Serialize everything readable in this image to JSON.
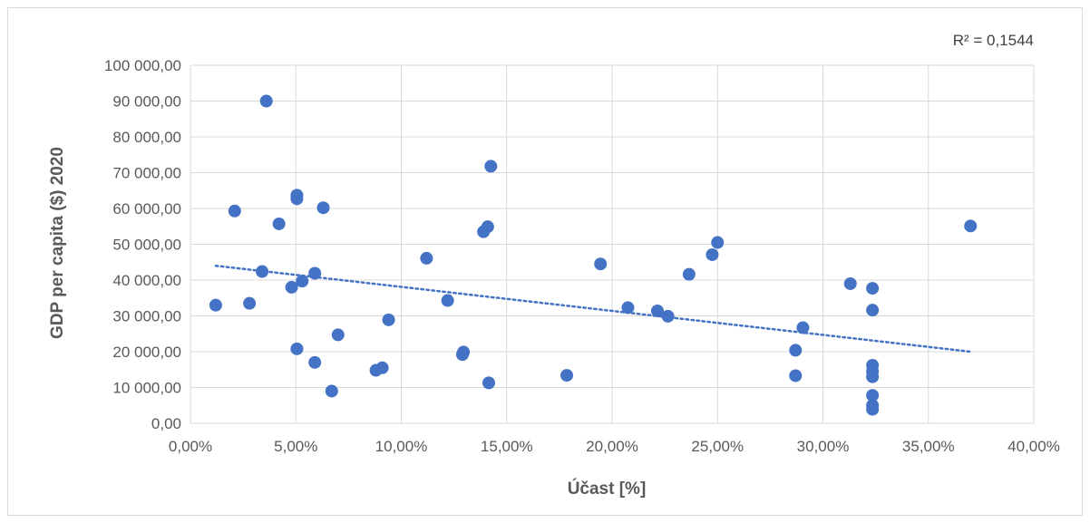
{
  "chart_data": {
    "type": "scatter",
    "xlabel": "Účast [%]",
    "ylabel": "GDP per capita ($) 2020",
    "xlim": [
      0,
      40
    ],
    "ylim": [
      0,
      100000
    ],
    "x_ticks": [
      "0,00%",
      "5,00%",
      "10,00%",
      "15,00%",
      "20,00%",
      "25,00%",
      "30,00%",
      "35,00%",
      "40,00%"
    ],
    "y_ticks": [
      "0,00",
      "10 000,00",
      "20 000,00",
      "30 000,00",
      "40 000,00",
      "50 000,00",
      "60 000,00",
      "70 000,00",
      "80 000,00",
      "90 000,00",
      "100 000,00"
    ],
    "grid": true,
    "legend": "none",
    "colors": {
      "marker": "#4472c4",
      "trendline": "#4472c4",
      "grid": "#d9d9d9"
    },
    "annotation": "R² = 0,1544",
    "trendline": {
      "type": "linear",
      "x_start": 1.2,
      "y_start": 44000,
      "x_end": 37.0,
      "y_end": 20000,
      "style": "dotted"
    },
    "points": [
      {
        "x": 1.2,
        "y": 33000
      },
      {
        "x": 2.1,
        "y": 59300
      },
      {
        "x": 2.8,
        "y": 33500
      },
      {
        "x": 3.4,
        "y": 42400
      },
      {
        "x": 3.6,
        "y": 90000
      },
      {
        "x": 4.2,
        "y": 55700
      },
      {
        "x": 4.8,
        "y": 38000
      },
      {
        "x": 5.05,
        "y": 63700
      },
      {
        "x": 5.05,
        "y": 62700
      },
      {
        "x": 5.05,
        "y": 20800
      },
      {
        "x": 5.3,
        "y": 39700
      },
      {
        "x": 5.9,
        "y": 41900
      },
      {
        "x": 5.9,
        "y": 17000
      },
      {
        "x": 6.3,
        "y": 60200
      },
      {
        "x": 6.7,
        "y": 9000
      },
      {
        "x": 7.0,
        "y": 24700
      },
      {
        "x": 8.8,
        "y": 14800
      },
      {
        "x": 9.1,
        "y": 15500
      },
      {
        "x": 9.4,
        "y": 28900
      },
      {
        "x": 11.2,
        "y": 46100
      },
      {
        "x": 12.2,
        "y": 34300
      },
      {
        "x": 12.9,
        "y": 19200
      },
      {
        "x": 12.95,
        "y": 19900
      },
      {
        "x": 13.9,
        "y": 53500
      },
      {
        "x": 14.1,
        "y": 54900
      },
      {
        "x": 14.15,
        "y": 11300
      },
      {
        "x": 14.25,
        "y": 71800
      },
      {
        "x": 17.85,
        "y": 13400
      },
      {
        "x": 19.45,
        "y": 44500
      },
      {
        "x": 20.75,
        "y": 32300
      },
      {
        "x": 22.15,
        "y": 31400
      },
      {
        "x": 22.65,
        "y": 29900
      },
      {
        "x": 23.65,
        "y": 41600
      },
      {
        "x": 24.75,
        "y": 47100
      },
      {
        "x": 25.0,
        "y": 50500
      },
      {
        "x": 28.7,
        "y": 20400
      },
      {
        "x": 28.7,
        "y": 13300
      },
      {
        "x": 29.05,
        "y": 26700
      },
      {
        "x": 31.3,
        "y": 39000
      },
      {
        "x": 32.35,
        "y": 37700
      },
      {
        "x": 32.35,
        "y": 31600
      },
      {
        "x": 32.35,
        "y": 16200
      },
      {
        "x": 32.35,
        "y": 14500
      },
      {
        "x": 32.35,
        "y": 13000
      },
      {
        "x": 32.35,
        "y": 7800
      },
      {
        "x": 32.35,
        "y": 5000
      },
      {
        "x": 32.35,
        "y": 3900
      },
      {
        "x": 37.0,
        "y": 55100
      }
    ]
  }
}
